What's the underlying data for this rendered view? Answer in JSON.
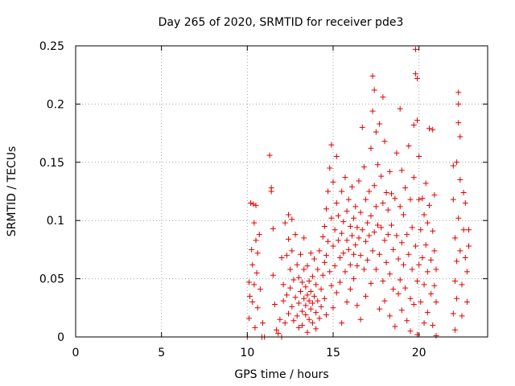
{
  "chart_data": {
    "type": "scatter",
    "title": "Day 265 of 2020, SRMTID for receiver pde3",
    "xlabel": "GPS time / hours",
    "ylabel": "SRMTID / TECUs",
    "xlim": [
      0,
      24
    ],
    "ylim": [
      0,
      0.25
    ],
    "xticks": [
      0,
      5,
      10,
      15,
      20
    ],
    "xtick_labels": [
      "0",
      "5",
      "10",
      "15",
      "20"
    ],
    "yticks": [
      0,
      0.05,
      0.1,
      0.15,
      0.2,
      0.25
    ],
    "ytick_labels": [
      "0",
      "0.05",
      "0.1",
      "0.15",
      "0.2",
      "0.25"
    ],
    "grid": true,
    "marker": "+",
    "color": "#e00000",
    "series": [
      {
        "name": "SRMTID",
        "points": [
          [
            10.0,
            0.0
          ],
          [
            10.1,
            0.047
          ],
          [
            10.1,
            0.016
          ],
          [
            10.15,
            0.035
          ],
          [
            10.2,
            0.115
          ],
          [
            10.25,
            0.075
          ],
          [
            10.3,
            0.062
          ],
          [
            10.3,
            0.03
          ],
          [
            10.35,
            0.114
          ],
          [
            10.4,
            0.098
          ],
          [
            10.4,
            0.045
          ],
          [
            10.45,
            0.008
          ],
          [
            10.5,
            0.113
          ],
          [
            10.5,
            0.083
          ],
          [
            10.55,
            0.055
          ],
          [
            10.6,
            0.025
          ],
          [
            10.6,
            0.072
          ],
          [
            10.7,
            0.088
          ],
          [
            10.75,
            0.041
          ],
          [
            10.85,
            0.0
          ],
          [
            10.9,
            0.012
          ],
          [
            11.0,
            0.0
          ],
          [
            11.3,
            0.156
          ],
          [
            11.4,
            0.128
          ],
          [
            11.4,
            0.125
          ],
          [
            11.5,
            0.093
          ],
          [
            11.5,
            0.053
          ],
          [
            11.6,
            0.028
          ],
          [
            11.7,
            0.006
          ],
          [
            11.8,
            0.003
          ],
          [
            11.9,
            0.015
          ],
          [
            12.0,
            0.0
          ],
          [
            12.0,
            0.068
          ],
          [
            12.1,
            0.031
          ],
          [
            12.1,
            0.045
          ],
          [
            12.2,
            0.098
          ],
          [
            12.2,
            0.012
          ],
          [
            12.3,
            0.07
          ],
          [
            12.3,
            0.036
          ],
          [
            12.4,
            0.084
          ],
          [
            12.4,
            0.105
          ],
          [
            12.4,
            0.02
          ],
          [
            12.5,
            0.058
          ],
          [
            12.5,
            0.042
          ],
          [
            12.6,
            0.101
          ],
          [
            12.6,
            0.074
          ],
          [
            12.6,
            0.026
          ],
          [
            12.7,
            0.014
          ],
          [
            12.7,
            0.049
          ],
          [
            12.8,
            0.088
          ],
          [
            12.8,
            0.034
          ],
          [
            12.9,
            0.062
          ],
          [
            12.9,
            0.018
          ],
          [
            13.0,
            0.008
          ],
          [
            13.0,
            0.051
          ],
          [
            13.0,
            0.029
          ],
          [
            13.1,
            0.039
          ],
          [
            13.1,
            0.071
          ],
          [
            13.2,
            0.022
          ],
          [
            13.2,
            0.047
          ],
          [
            13.2,
            0.01
          ],
          [
            13.3,
            0.033
          ],
          [
            13.3,
            0.058
          ],
          [
            13.3,
            0.085
          ],
          [
            13.4,
            0.019
          ],
          [
            13.4,
            0.043
          ],
          [
            13.4,
            0.027
          ],
          [
            13.5,
            0.036
          ],
          [
            13.5,
            0.061
          ],
          [
            13.5,
            0.004
          ],
          [
            13.6,
            0.031
          ],
          [
            13.6,
            0.048
          ],
          [
            13.6,
            0.015
          ],
          [
            13.7,
            0.024
          ],
          [
            13.7,
            0.039
          ],
          [
            13.7,
            0.072
          ],
          [
            13.8,
            0.012
          ],
          [
            13.8,
            0.052
          ],
          [
            13.8,
            0.029
          ],
          [
            13.9,
            0.035
          ],
          [
            13.9,
            0.067
          ],
          [
            14.0,
            0.021
          ],
          [
            14.0,
            0.045
          ],
          [
            14.0,
            0.007
          ],
          [
            14.1,
            0.031
          ],
          [
            14.1,
            0.058
          ],
          [
            14.2,
            0.016
          ],
          [
            14.2,
            0.074
          ],
          [
            14.3,
            0.041
          ],
          [
            14.3,
            0.026
          ],
          [
            14.4,
            0.086
          ],
          [
            14.4,
            0.053
          ],
          [
            14.5,
            0.095
          ],
          [
            14.5,
            0.064
          ],
          [
            14.5,
            0.033
          ],
          [
            14.6,
            0.11
          ],
          [
            14.6,
            0.07
          ],
          [
            14.6,
            0.019
          ],
          [
            14.7,
            0.125
          ],
          [
            14.7,
            0.082
          ],
          [
            14.8,
            0.145
          ],
          [
            14.8,
            0.056
          ],
          [
            14.9,
            0.165
          ],
          [
            14.9,
            0.102
          ],
          [
            14.9,
            0.044
          ],
          [
            15.0,
            0.133
          ],
          [
            15.0,
            0.078
          ],
          [
            15.0,
            0.025
          ],
          [
            15.1,
            0.092
          ],
          [
            15.1,
            0.061
          ],
          [
            15.2,
            0.155
          ],
          [
            15.2,
            0.115
          ],
          [
            15.2,
            0.038
          ],
          [
            15.3,
            0.083
          ],
          [
            15.3,
            0.104
          ],
          [
            15.4,
            0.068
          ],
          [
            15.4,
            0.047
          ],
          [
            15.5,
            0.125
          ],
          [
            15.5,
            0.089
          ],
          [
            15.5,
            0.012
          ],
          [
            15.6,
            0.099
          ],
          [
            15.6,
            0.072
          ],
          [
            15.7,
            0.137
          ],
          [
            15.7,
            0.056
          ],
          [
            15.8,
            0.108
          ],
          [
            15.8,
            0.083
          ],
          [
            15.8,
            0.03
          ],
          [
            15.9,
            0.075
          ],
          [
            15.9,
            0.118
          ],
          [
            16.0,
            0.095
          ],
          [
            16.0,
            0.062
          ],
          [
            16.0,
            0.041
          ],
          [
            16.1,
            0.129
          ],
          [
            16.1,
            0.087
          ],
          [
            16.2,
            0.071
          ],
          [
            16.2,
            0.102
          ],
          [
            16.2,
            0.05
          ],
          [
            16.3,
            0.112
          ],
          [
            16.3,
            0.079
          ],
          [
            16.4,
            0.094
          ],
          [
            16.4,
            0.061
          ],
          [
            16.4,
            0.027
          ],
          [
            16.5,
            0.134
          ],
          [
            16.5,
            0.085
          ],
          [
            16.6,
            0.107
          ],
          [
            16.6,
            0.07
          ],
          [
            16.6,
            0.015
          ],
          [
            16.7,
            0.18
          ],
          [
            16.7,
            0.092
          ],
          [
            16.8,
            0.146
          ],
          [
            16.8,
            0.058
          ],
          [
            16.9,
            0.118
          ],
          [
            16.9,
            0.082
          ],
          [
            16.9,
            0.035
          ],
          [
            17.0,
            0.098
          ],
          [
            17.0,
            0.066
          ],
          [
            17.1,
            0.125
          ],
          [
            17.1,
            0.087
          ],
          [
            17.2,
            0.162
          ],
          [
            17.2,
            0.104
          ],
          [
            17.2,
            0.046
          ],
          [
            17.3,
            0.224
          ],
          [
            17.3,
            0.194
          ],
          [
            17.3,
            0.074
          ],
          [
            17.4,
            0.212
          ],
          [
            17.4,
            0.13
          ],
          [
            17.4,
            0.09
          ],
          [
            17.5,
            0.176
          ],
          [
            17.5,
            0.112
          ],
          [
            17.5,
            0.058
          ],
          [
            17.6,
            0.148
          ],
          [
            17.6,
            0.096
          ],
          [
            17.7,
            0.183
          ],
          [
            17.7,
            0.071
          ],
          [
            17.7,
            0.024
          ],
          [
            17.8,
            0.138
          ],
          [
            17.8,
            0.094
          ],
          [
            17.9,
            0.206
          ],
          [
            17.9,
            0.115
          ],
          [
            17.9,
            0.048
          ],
          [
            18.0,
            0.168
          ],
          [
            18.0,
            0.083
          ],
          [
            18.0,
            0.031
          ],
          [
            18.1,
            0.124
          ],
          [
            18.1,
            0.064
          ],
          [
            18.2,
            0.109
          ],
          [
            18.2,
            0.088
          ],
          [
            18.3,
            0.142
          ],
          [
            18.3,
            0.054
          ],
          [
            18.3,
            0.018
          ],
          [
            18.4,
            0.096
          ],
          [
            18.4,
            0.123
          ],
          [
            18.5,
            0.075
          ],
          [
            18.5,
            0.041
          ],
          [
            18.6,
            0.119
          ],
          [
            18.6,
            0.009
          ],
          [
            18.7,
            0.158
          ],
          [
            18.7,
            0.087
          ],
          [
            18.8,
            0.067
          ],
          [
            18.8,
            0.037
          ],
          [
            18.9,
            0.196
          ],
          [
            18.9,
            0.112
          ],
          [
            18.9,
            0.049
          ],
          [
            19.0,
            0.143
          ],
          [
            19.0,
            0.081
          ],
          [
            19.0,
            0.023
          ],
          [
            19.1,
            0.105
          ],
          [
            19.1,
            0.062
          ],
          [
            19.2,
            0.128
          ],
          [
            19.2,
            0.042
          ],
          [
            19.3,
            0.088
          ],
          [
            19.3,
            0.014
          ],
          [
            19.4,
            0.164
          ],
          [
            19.4,
            0.071
          ],
          [
            19.5,
            0.118
          ],
          [
            19.5,
            0.033
          ],
          [
            19.5,
            0.005
          ],
          [
            19.6,
            0.094
          ],
          [
            19.6,
            0.058
          ],
          [
            19.7,
            0.137
          ],
          [
            19.7,
            0.182
          ],
          [
            19.7,
            0.028
          ],
          [
            19.8,
            0.247
          ],
          [
            19.8,
            0.226
          ],
          [
            19.8,
            0.078
          ],
          [
            19.9,
            0.222
          ],
          [
            19.9,
            0.186
          ],
          [
            19.9,
            0.048
          ],
          [
            19.9,
            0.002
          ],
          [
            20.0,
            0.118
          ],
          [
            20.0,
            0.155
          ],
          [
            20.0,
            0.062
          ],
          [
            20.1,
            0.092
          ],
          [
            20.1,
            0.03
          ],
          [
            20.2,
            0.119
          ],
          [
            20.2,
            0.068
          ],
          [
            20.3,
            0.105
          ],
          [
            20.3,
            0.045
          ],
          [
            20.3,
            0.012
          ],
          [
            20.4,
            0.132
          ],
          [
            20.4,
            0.079
          ],
          [
            20.5,
            0.098
          ],
          [
            20.5,
            0.056
          ],
          [
            20.5,
            0.021
          ],
          [
            20.6,
            0.179
          ],
          [
            20.6,
            0.113
          ],
          [
            20.7,
            0.066
          ],
          [
            20.7,
            0.037
          ],
          [
            20.8,
            0.178
          ],
          [
            20.8,
            0.091
          ],
          [
            20.8,
            0.01
          ],
          [
            20.9,
            0.122
          ],
          [
            20.9,
            0.074
          ],
          [
            20.9,
            0.044
          ],
          [
            21.0,
            0.058
          ],
          [
            21.0,
            0.03
          ],
          [
            21.0,
            0.001
          ],
          [
            22.0,
            0.147
          ],
          [
            22.0,
            0.118
          ],
          [
            22.0,
            0.02
          ],
          [
            22.1,
            0.085
          ],
          [
            22.1,
            0.048
          ],
          [
            22.1,
            0.006
          ],
          [
            22.2,
            0.15
          ],
          [
            22.2,
            0.065
          ],
          [
            22.2,
            0.033
          ],
          [
            22.3,
            0.21
          ],
          [
            22.3,
            0.2
          ],
          [
            22.3,
            0.184
          ],
          [
            22.3,
            0.102
          ],
          [
            22.4,
            0.172
          ],
          [
            22.4,
            0.135
          ],
          [
            22.4,
            0.074
          ],
          [
            22.5,
            0.045
          ],
          [
            22.5,
            0.018
          ],
          [
            22.6,
            0.124
          ],
          [
            22.6,
            0.092
          ],
          [
            22.7,
            0.115
          ],
          [
            22.7,
            0.068
          ],
          [
            22.8,
            0.056
          ],
          [
            22.8,
            0.03
          ],
          [
            22.9,
            0.092
          ],
          [
            22.9,
            0.078
          ]
        ]
      }
    ]
  }
}
